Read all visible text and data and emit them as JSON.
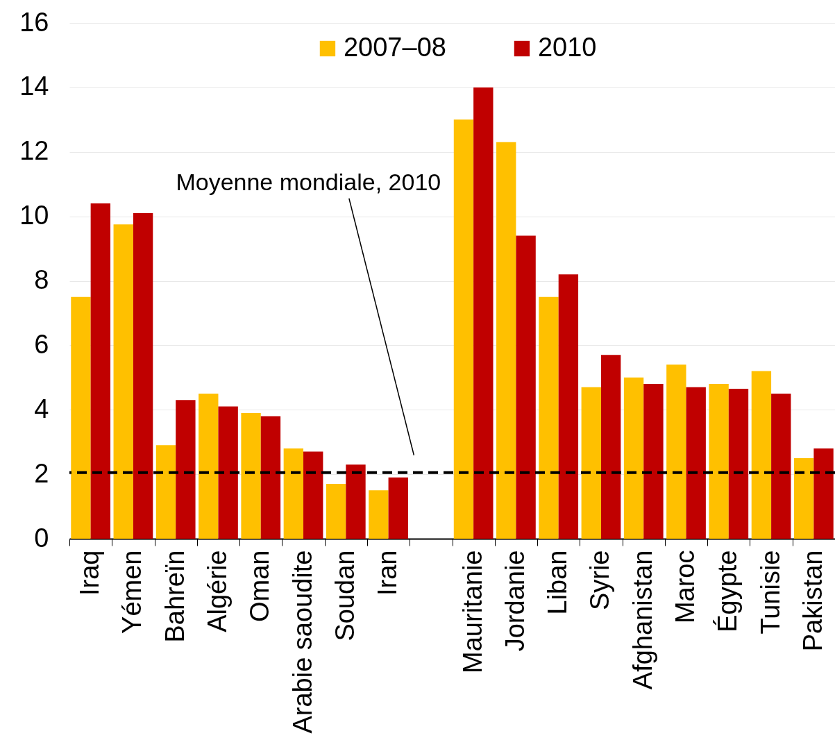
{
  "chart_data": {
    "type": "bar",
    "categories": [
      "Iraq",
      "Yémen",
      "Bahreïn",
      "Algérie",
      "Oman",
      "Arabie saoudite",
      "Soudan",
      "Iran",
      null,
      "Mauritanie",
      "Jordanie",
      "Liban",
      "Syrie",
      "Afghanistan",
      "Maroc",
      "Égypte",
      "Tunisie",
      "Pakistan"
    ],
    "series": [
      {
        "name": "2007–08",
        "color": "#ffc000",
        "values": [
          7.5,
          9.75,
          2.9,
          4.5,
          3.9,
          2.8,
          1.7,
          1.5,
          null,
          13.0,
          12.3,
          7.5,
          4.7,
          5.0,
          5.4,
          4.8,
          5.2,
          2.5
        ]
      },
      {
        "name": "2010",
        "color": "#c00000",
        "values": [
          10.4,
          10.1,
          4.3,
          4.1,
          3.8,
          2.7,
          2.3,
          1.9,
          null,
          14.0,
          9.4,
          8.2,
          5.7,
          4.8,
          4.7,
          4.65,
          4.5,
          2.8
        ]
      }
    ],
    "ylim": [
      0,
      16
    ],
    "yticks": [
      0,
      2,
      4,
      6,
      8,
      10,
      12,
      14,
      16
    ],
    "grid": "y",
    "legend": "top",
    "annotations": [
      "Moyenne mondiale, 2010"
    ],
    "ref_lines": [
      {
        "axis": "y",
        "value": 2.05,
        "color": "#000000",
        "line_style": "dashed"
      }
    ]
  }
}
